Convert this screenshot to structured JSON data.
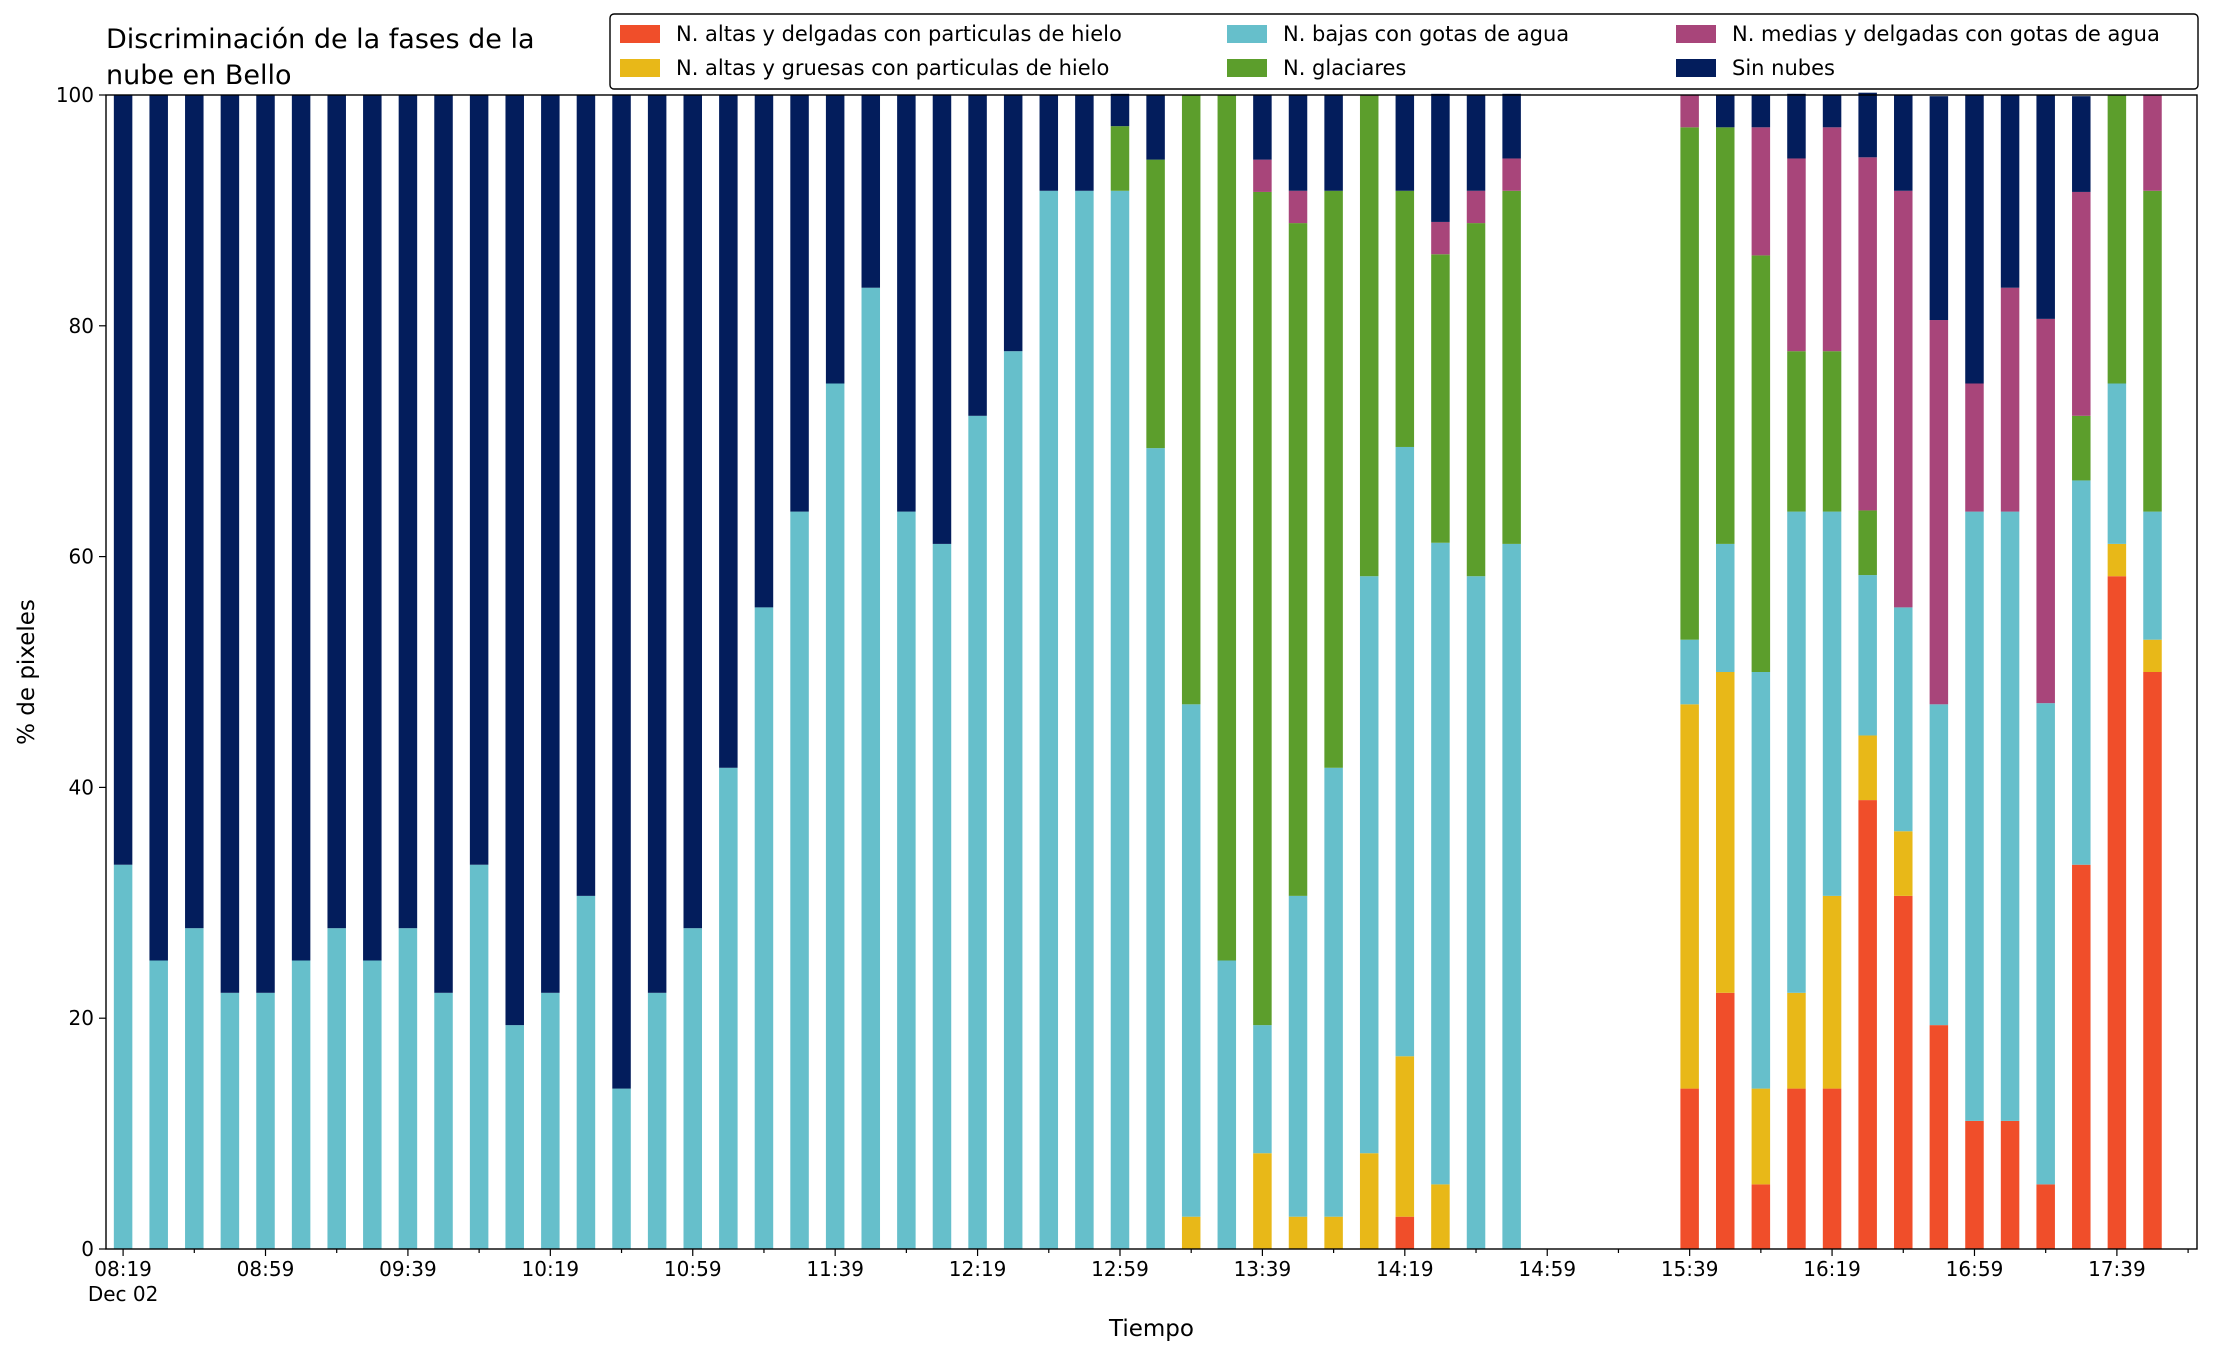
{
  "chart_data": {
    "type": "stacked_bar",
    "title": "Discriminación de la fases de la\nnube en Bello",
    "xlabel": "Tiempo",
    "ylabel": "% de pixeles",
    "date_label": "Dec 02",
    "categories": [
      "08:19",
      null,
      null,
      null,
      "08:59",
      null,
      null,
      null,
      "09:39",
      null,
      null,
      null,
      "10:19",
      null,
      null,
      null,
      "10:59",
      null,
      null,
      null,
      "11:39",
      null,
      null,
      null,
      "12:19",
      null,
      null,
      null,
      "12:59",
      null,
      null,
      null,
      "13:39",
      null,
      null,
      null,
      "14:19",
      null,
      null,
      null,
      "14:59",
      null,
      null,
      null,
      "15:39",
      null,
      null,
      null,
      "16:19",
      null,
      null,
      null,
      "16:59",
      null,
      null,
      null,
      "17:39",
      null
    ],
    "ylim": [
      0,
      100
    ],
    "yticks": [
      0,
      20,
      40,
      60,
      80,
      100
    ],
    "legend": "top-right",
    "series": [
      {
        "name": "N. altas y delgadas con particulas de hielo",
        "color": "#f04e2a",
        "values": [
          0,
          0,
          0,
          0,
          0,
          0,
          0,
          0,
          0,
          0,
          0,
          0,
          0,
          0,
          0,
          0,
          0,
          0,
          0,
          0,
          0,
          0,
          0,
          0,
          0,
          0,
          0,
          0,
          0,
          0,
          0,
          0,
          0,
          0,
          0,
          0,
          2.8,
          0,
          0,
          0,
          null,
          null,
          null,
          null,
          13.9,
          22.2,
          5.6,
          13.9,
          13.9,
          38.9,
          30.6,
          19.4,
          11.1,
          11.1,
          5.6,
          33.3,
          58.3,
          50
        ]
      },
      {
        "name": "N. altas y gruesas con particulas de hielo",
        "color": "#e8b818",
        "values": [
          0,
          0,
          0,
          0,
          0,
          0,
          0,
          0,
          0,
          0,
          0,
          0,
          0,
          0,
          0,
          0,
          0,
          0,
          0,
          0,
          0,
          0,
          0,
          0,
          0,
          0,
          0,
          0,
          0,
          0,
          2.8,
          0,
          8.3,
          2.8,
          2.8,
          8.3,
          13.9,
          5.6,
          0,
          0,
          null,
          null,
          null,
          null,
          33.3,
          27.8,
          8.3,
          8.3,
          16.7,
          5.6,
          5.6,
          0,
          0,
          0,
          0,
          0,
          2.8,
          2.8
        ]
      },
      {
        "name": "N. bajas con gotas de agua",
        "color": "#66bfcb",
        "values": [
          33.3,
          25,
          27.8,
          22.2,
          22.2,
          25,
          27.8,
          25,
          27.8,
          22.2,
          33.3,
          19.4,
          22.2,
          30.6,
          13.9,
          22.2,
          27.8,
          41.7,
          55.6,
          63.9,
          75,
          83.3,
          63.9,
          61.1,
          72.2,
          77.8,
          91.7,
          91.7,
          91.7,
          69.4,
          44.4,
          25,
          11.1,
          27.8,
          38.9,
          50,
          52.8,
          55.6,
          58.3,
          61.1,
          null,
          null,
          null,
          null,
          5.6,
          11.1,
          36.1,
          41.7,
          33.3,
          13.9,
          19.4,
          27.8,
          52.8,
          52.8,
          41.7,
          33.3,
          13.9,
          11.1
        ]
      },
      {
        "name": "N. glaciares",
        "color": "#5c9e2c",
        "values": [
          0,
          0,
          0,
          0,
          0,
          0,
          0,
          0,
          0,
          0,
          0,
          0,
          0,
          0,
          0,
          0,
          0,
          0,
          0,
          0,
          0,
          0,
          0,
          0,
          0,
          0,
          0,
          0,
          5.6,
          25,
          52.8,
          75,
          72.2,
          58.3,
          50,
          41.7,
          22.2,
          25,
          30.6,
          30.6,
          null,
          null,
          null,
          null,
          44.4,
          36.1,
          36.1,
          13.9,
          13.9,
          5.6,
          0,
          0,
          0,
          0,
          0,
          5.6,
          25,
          27.8
        ]
      },
      {
        "name": "N. medias y delgadas con gotas de agua",
        "color": "#a8457a",
        "values": [
          0,
          0,
          0,
          0,
          0,
          0,
          0,
          0,
          0,
          0,
          0,
          0,
          0,
          0,
          0,
          0,
          0,
          0,
          0,
          0,
          0,
          0,
          0,
          0,
          0,
          0,
          0,
          0,
          0,
          0,
          0,
          0,
          2.8,
          2.8,
          0,
          0,
          0,
          2.8,
          2.8,
          2.8,
          null,
          null,
          null,
          null,
          2.8,
          0,
          11.1,
          16.7,
          19.4,
          30.6,
          36.1,
          33.3,
          11.1,
          19.4,
          33.3,
          19.4,
          0,
          8.3
        ]
      },
      {
        "name": "Sin nubes",
        "color": "#031d5c",
        "values": [
          66.7,
          75,
          72.2,
          77.8,
          77.8,
          75,
          72.2,
          75,
          72.2,
          77.8,
          66.7,
          80.6,
          77.8,
          69.4,
          86.1,
          77.8,
          72.2,
          58.3,
          44.4,
          36.1,
          25,
          16.7,
          36.1,
          38.9,
          27.8,
          22.2,
          8.3,
          8.3,
          2.8,
          5.6,
          0,
          0,
          5.6,
          8.3,
          8.3,
          0,
          8.3,
          11.1,
          8.3,
          5.6,
          null,
          null,
          null,
          null,
          0,
          2.8,
          2.8,
          5.6,
          2.8,
          5.6,
          8.3,
          19.4,
          25,
          16.7,
          19.4,
          8.3,
          0,
          0
        ]
      }
    ]
  }
}
